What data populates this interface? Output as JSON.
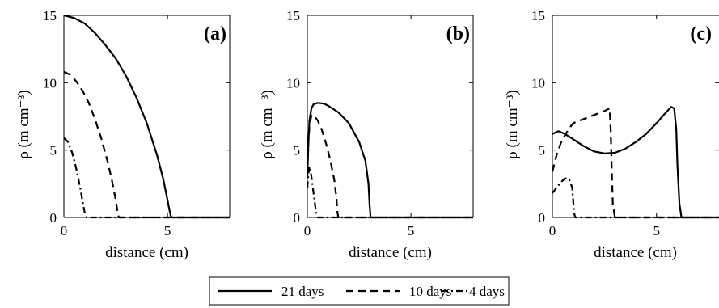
{
  "chart_data": [
    {
      "type": "line",
      "panel_label": "(a)",
      "xlabel": "distance (cm)",
      "ylabel": "ρ (m cm⁻³)",
      "xlim": [
        0,
        8
      ],
      "ylim": [
        0,
        15
      ],
      "xticks": [
        0,
        5
      ],
      "yticks": [
        0,
        5,
        10,
        15
      ],
      "series": [
        {
          "name": "21 days",
          "style": "solid",
          "x": [
            0,
            0.5,
            1,
            1.5,
            2,
            2.5,
            3,
            3.5,
            4,
            4.5,
            4.8,
            5.0,
            5.1,
            5.15,
            5.2,
            6,
            7,
            8
          ],
          "y": [
            15.0,
            14.8,
            14.4,
            13.7,
            12.8,
            11.8,
            10.5,
            8.9,
            7.0,
            4.6,
            2.8,
            1.3,
            0.5,
            0.15,
            0,
            0,
            0,
            0
          ]
        },
        {
          "name": "10 days",
          "style": "dashed",
          "x": [
            0,
            0.3,
            0.6,
            0.9,
            1.2,
            1.5,
            1.8,
            2.1,
            2.3,
            2.5,
            2.6,
            2.65,
            3,
            5,
            8
          ],
          "y": [
            10.8,
            10.6,
            10.1,
            9.4,
            8.5,
            7.3,
            5.9,
            4.2,
            2.9,
            1.3,
            0.3,
            0,
            0,
            0,
            0
          ]
        },
        {
          "name": "4 days",
          "style": "dashdot",
          "x": [
            0,
            0.2,
            0.4,
            0.6,
            0.8,
            0.9,
            1.0,
            1.05,
            1.1,
            2,
            5,
            8
          ],
          "y": [
            5.9,
            5.6,
            4.8,
            3.6,
            2.1,
            1.2,
            0.4,
            0.1,
            0,
            0,
            0,
            0
          ]
        }
      ]
    },
    {
      "type": "line",
      "panel_label": "(b)",
      "xlabel": "distance (cm)",
      "ylabel": "ρ (m cm⁻³)",
      "xlim": [
        0,
        8
      ],
      "ylim": [
        0,
        15
      ],
      "xticks": [
        0,
        5
      ],
      "yticks": [
        0,
        5,
        10,
        15
      ],
      "series": [
        {
          "name": "21 days",
          "style": "solid",
          "x": [
            0,
            0.05,
            0.1,
            0.2,
            0.3,
            0.5,
            0.8,
            1.0,
            1.5,
            2.0,
            2.5,
            2.8,
            2.95,
            3.0,
            3.05,
            4,
            6,
            8
          ],
          "y": [
            3.0,
            5.5,
            7.2,
            8.1,
            8.4,
            8.5,
            8.45,
            8.3,
            7.8,
            7.0,
            5.6,
            4.2,
            2.5,
            1.0,
            0,
            0,
            0,
            0
          ]
        },
        {
          "name": "10 days",
          "style": "dashed",
          "x": [
            0,
            0.05,
            0.1,
            0.2,
            0.3,
            0.5,
            0.7,
            0.9,
            1.1,
            1.3,
            1.4,
            1.45,
            1.5,
            3,
            8
          ],
          "y": [
            3.5,
            5.5,
            6.8,
            7.6,
            7.6,
            7.2,
            6.5,
            5.5,
            4.3,
            2.8,
            1.5,
            0.4,
            0,
            0,
            0
          ]
        },
        {
          "name": "4 days",
          "style": "dashdot",
          "x": [
            0,
            0.05,
            0.1,
            0.15,
            0.2,
            0.3,
            0.4,
            0.45,
            0.5,
            1,
            3,
            8
          ],
          "y": [
            2.2,
            3.2,
            3.8,
            3.6,
            3.0,
            1.8,
            0.6,
            0.2,
            0,
            0,
            0,
            0
          ]
        }
      ]
    },
    {
      "type": "line",
      "panel_label": "(c)",
      "xlabel": "distance (cm)",
      "ylabel": "ρ (m cm⁻³)",
      "xlim": [
        0,
        8
      ],
      "ylim": [
        0,
        15
      ],
      "xticks": [
        0,
        5
      ],
      "yticks": [
        0,
        5,
        10,
        15
      ],
      "series": [
        {
          "name": "21 days",
          "style": "solid",
          "x": [
            0,
            0.3,
            0.6,
            1.0,
            1.5,
            2.0,
            2.5,
            3.0,
            3.5,
            4.0,
            4.5,
            5.0,
            5.4,
            5.7,
            5.85,
            5.95,
            6.0,
            6.1,
            6.2,
            7,
            8
          ],
          "y": [
            6.2,
            6.4,
            6.2,
            5.8,
            5.3,
            4.9,
            4.75,
            4.8,
            5.1,
            5.6,
            6.2,
            7.0,
            7.7,
            8.2,
            8.1,
            6.5,
            4.0,
            1.0,
            0,
            0,
            0
          ]
        },
        {
          "name": "10 days",
          "style": "dashed",
          "x": [
            0,
            0.2,
            0.4,
            0.6,
            0.8,
            1.0,
            1.5,
            2.0,
            2.5,
            2.75,
            2.8,
            2.85,
            2.9,
            3.0,
            4,
            8
          ],
          "y": [
            3.4,
            4.6,
            5.5,
            6.1,
            6.6,
            7.0,
            7.3,
            7.6,
            7.9,
            8.1,
            6.5,
            3.5,
            1.0,
            0,
            0,
            0
          ]
        },
        {
          "name": "4 days",
          "style": "dashdot",
          "x": [
            0,
            0.2,
            0.4,
            0.6,
            0.75,
            0.85,
            0.95,
            1.0,
            1.05,
            1.1,
            2,
            8
          ],
          "y": [
            1.8,
            2.2,
            2.6,
            2.9,
            2.9,
            2.7,
            2.2,
            1.2,
            0.3,
            0,
            0,
            0
          ]
        }
      ]
    }
  ],
  "legend": {
    "items": [
      {
        "label": "21 days",
        "style": "solid"
      },
      {
        "label": "10 days",
        "style": "dashed"
      },
      {
        "label": "4 days",
        "style": "dashdot"
      }
    ]
  }
}
